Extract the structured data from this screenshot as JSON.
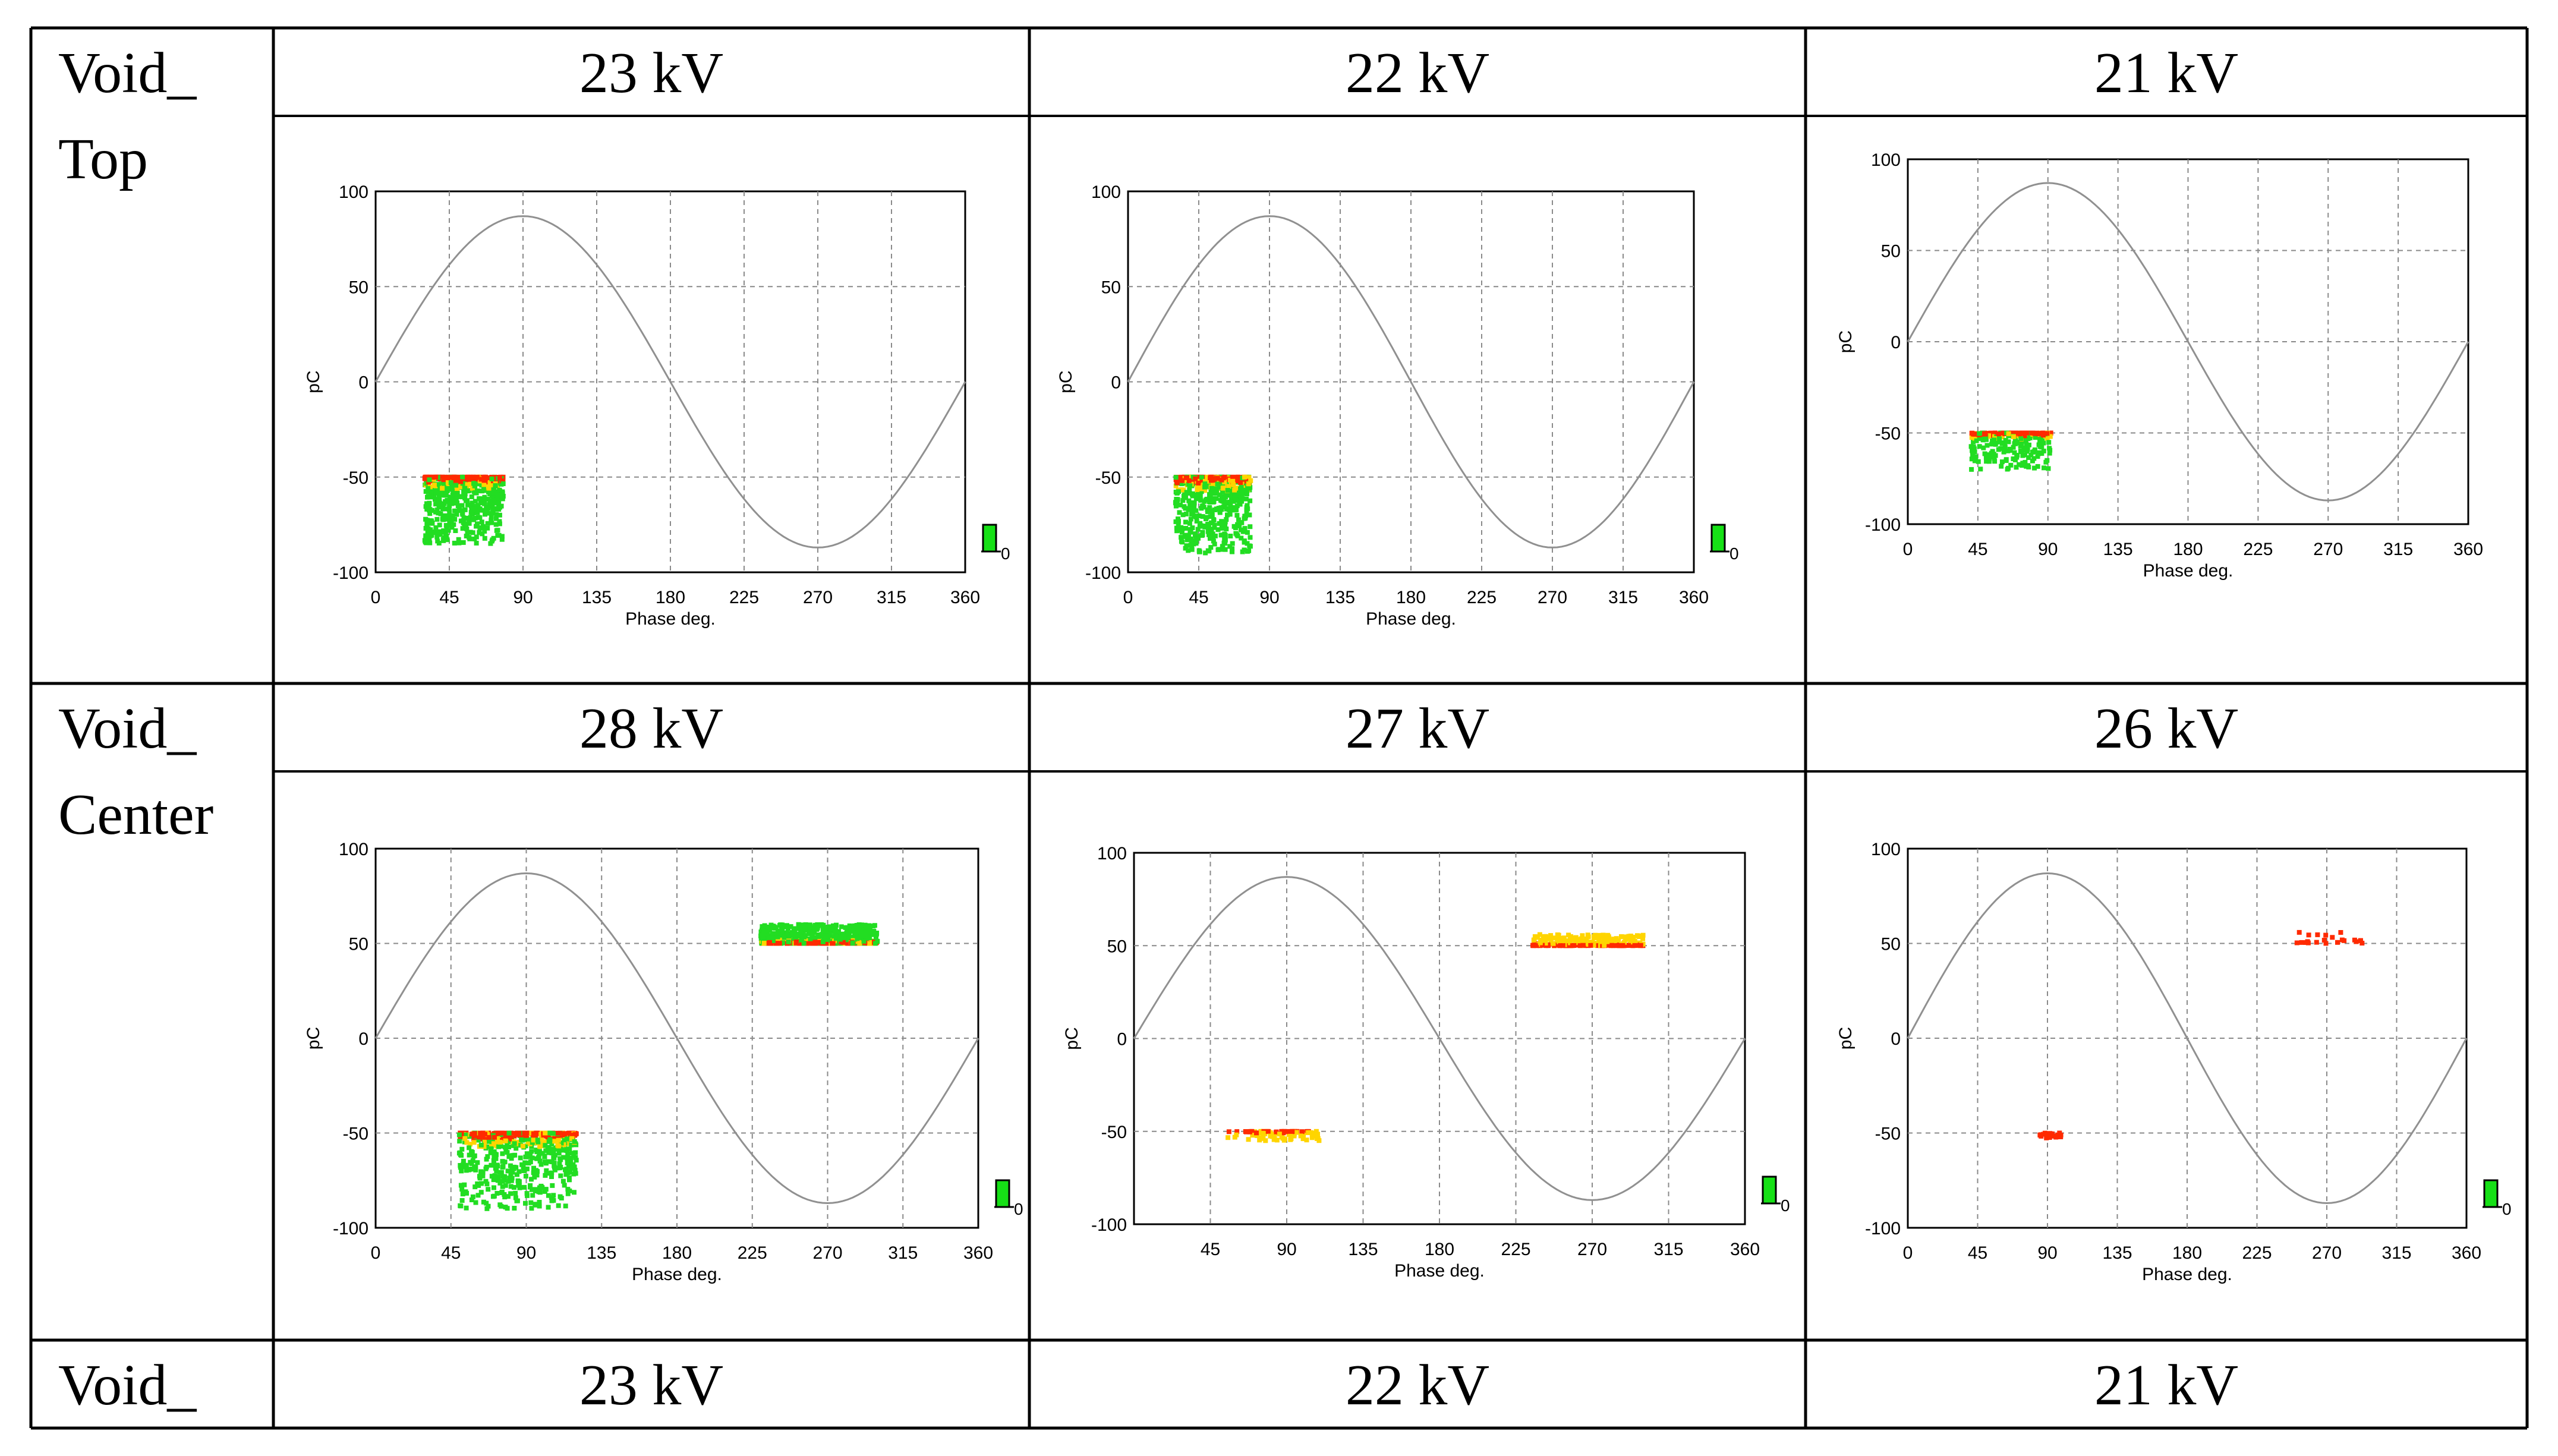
{
  "table": {
    "rows": [
      {
        "label": "Void_\nTop",
        "columns": [
          {
            "header": "23 kV"
          },
          {
            "header": "22 kV"
          },
          {
            "header": "21 kV"
          }
        ]
      },
      {
        "label": "Void_\nCenter",
        "columns": [
          {
            "header": "28 kV"
          },
          {
            "header": "27 kV"
          },
          {
            "header": "26 kV"
          }
        ]
      },
      {
        "label": "Void_",
        "columns": [
          {
            "header": "23 kV"
          },
          {
            "header": "22 kV"
          },
          {
            "header": "21 kV"
          }
        ]
      }
    ]
  },
  "chart_data": [
    {
      "id": "top-23kv",
      "type": "scatter",
      "xlabel": "Phase deg.",
      "ylabel": "pC",
      "xlim": [
        0,
        360
      ],
      "ylim": [
        -100,
        100
      ],
      "xticks": [
        "0",
        "45",
        "90",
        "135",
        "180",
        "225",
        "270",
        "315",
        "360"
      ],
      "yticks": [
        "100",
        "50",
        "0",
        "-50",
        "-100"
      ],
      "legend_label": "0",
      "clusters": [
        {
          "phase": [
            30,
            78
          ],
          "charge": [
            -50,
            -85
          ],
          "colors": [
            "#22dd22",
            "#ffd500",
            "#ff2a00"
          ],
          "density": "high"
        }
      ]
    },
    {
      "id": "top-22kv",
      "type": "scatter",
      "xlabel": "Phase deg.",
      "ylabel": "pC",
      "xlim": [
        0,
        360
      ],
      "ylim": [
        -100,
        100
      ],
      "xticks": [
        "0",
        "45",
        "90",
        "135",
        "180",
        "225",
        "270",
        "315",
        "360"
      ],
      "yticks": [
        "100",
        "50",
        "0",
        "-50",
        "-100"
      ],
      "legend_label": "0",
      "clusters": [
        {
          "phase": [
            30,
            78
          ],
          "charge": [
            -50,
            -90
          ],
          "colors": [
            "#22dd22",
            "#ffd500",
            "#ff2a00"
          ],
          "density": "high"
        }
      ]
    },
    {
      "id": "top-21kv",
      "type": "scatter",
      "xlabel": "Phase deg.",
      "ylabel": "pC",
      "xlim": [
        0,
        360
      ],
      "ylim": [
        -100,
        100
      ],
      "xticks": [
        "0",
        "45",
        "90",
        "135",
        "180",
        "225",
        "270",
        "315",
        "360"
      ],
      "yticks": [
        "100",
        "50",
        "0",
        "-50",
        "-100"
      ],
      "legend_label": "",
      "clusters": [
        {
          "phase": [
            40,
            92
          ],
          "charge": [
            -50,
            -70
          ],
          "colors": [
            "#22dd22",
            "#ffd500",
            "#ff2a00"
          ],
          "density": "medium"
        }
      ]
    },
    {
      "id": "center-28kv",
      "type": "scatter",
      "xlabel": "Phase deg.",
      "ylabel": "pC",
      "xlim": [
        0,
        360
      ],
      "ylim": [
        -100,
        100
      ],
      "xticks": [
        "0",
        "45",
        "90",
        "135",
        "180",
        "225",
        "270",
        "315",
        "360"
      ],
      "yticks": [
        "100",
        "50",
        "0",
        "-50",
        "-100"
      ],
      "legend_label": "0",
      "clusters": [
        {
          "phase": [
            50,
            120
          ],
          "charge": [
            -50,
            -90
          ],
          "colors": [
            "#22dd22",
            "#ffd500",
            "#ff2a00"
          ],
          "density": "high"
        },
        {
          "phase": [
            230,
            300
          ],
          "charge": [
            50,
            60
          ],
          "colors": [
            "#22dd22",
            "#ffd500",
            "#ff2a00"
          ],
          "density": "high"
        }
      ]
    },
    {
      "id": "center-27kv",
      "type": "scatter",
      "xlabel": "Phase deg.",
      "ylabel": "pC",
      "xlim": [
        0,
        360
      ],
      "ylim": [
        -100,
        100
      ],
      "xticks": [
        "45",
        "90",
        "135",
        "180",
        "225",
        "270",
        "315",
        "360"
      ],
      "yticks": [
        "100",
        "50",
        "0",
        "-50",
        "-100"
      ],
      "legend_label": "0",
      "clusters": [
        {
          "phase": [
            55,
            110
          ],
          "charge": [
            -50,
            -55
          ],
          "colors": [
            "#ffd500",
            "#ff2a00"
          ],
          "density": "low"
        },
        {
          "phase": [
            235,
            300
          ],
          "charge": [
            50,
            56
          ],
          "colors": [
            "#ffd500",
            "#ff2a00"
          ],
          "density": "medium"
        }
      ]
    },
    {
      "id": "center-26kv",
      "type": "scatter",
      "xlabel": "Phase deg.",
      "ylabel": "pC",
      "xlim": [
        0,
        360
      ],
      "ylim": [
        -100,
        100
      ],
      "xticks": [
        "0",
        "45",
        "90",
        "135",
        "180",
        "225",
        "270",
        "315",
        "360"
      ],
      "yticks": [
        "100",
        "50",
        "0",
        "-50",
        "-100"
      ],
      "legend_label": "0",
      "clusters": [
        {
          "phase": [
            85,
            100
          ],
          "charge": [
            -50,
            -53
          ],
          "colors": [
            "#ff2a00"
          ],
          "density": "sparse"
        },
        {
          "phase": [
            250,
            295
          ],
          "charge": [
            50,
            56
          ],
          "colors": [
            "#ff2a00"
          ],
          "density": "sparse"
        }
      ]
    }
  ]
}
